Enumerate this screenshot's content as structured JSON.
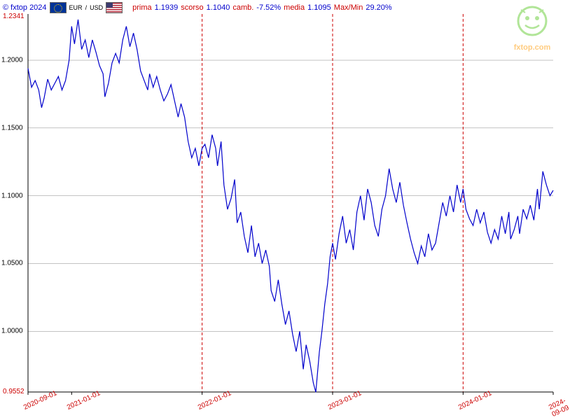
{
  "header": {
    "copyright": "© fxtop 2024",
    "pair_from": "EUR",
    "pair_sep": "/",
    "pair_to": "USD",
    "prima_label": "prima",
    "prima_value": "1.1939",
    "scorso_label": "scorso",
    "scorso_value": "1.1040",
    "camb_label": "camb.",
    "camb_value": "-7.52%",
    "media_label": "media",
    "media_value": "1.1095",
    "maxmin_label": "Max/Min",
    "maxmin_value": "29.20%"
  },
  "watermark": {
    "text": "fxtop.com",
    "face_color": "#66cc33",
    "text_color": "#ff9900"
  },
  "chart": {
    "type": "line",
    "background_color": "#ffffff",
    "line_color": "#0000cc",
    "line_width": 1.2,
    "grid_color": "#888888",
    "grid_width": 0.5,
    "vline_color": "#cc0000",
    "vline_dash": "4,3",
    "axis_color": "#000000",
    "ymin": 0.9552,
    "ymax": 1.2341,
    "ymax_label": "1.2341",
    "ymin_label": "0.9552",
    "ymax_color": "#cc0000",
    "ymin_color": "#cc0000",
    "ytick_label_color": "#000000",
    "yticks": [
      1.0,
      1.05,
      1.1,
      1.15,
      1.2
    ],
    "ytick_labels": [
      "1.0000",
      "1.0500",
      "1.1000",
      "1.1500",
      "1.2000"
    ],
    "ylabel_fontsize": 10,
    "xmin": 0,
    "xmax": 1469,
    "xticks": [
      0,
      122,
      487,
      852,
      1217,
      1469
    ],
    "xtick_labels": [
      "2020-09-01",
      "2021-01-01",
      "2022-01-01",
      "2023-01-01",
      "2024-01-01",
      "2024-09-09"
    ],
    "xtick_label_color": "#cc0000",
    "xlabel_fontsize": 10,
    "vlines_at": [
      487,
      852,
      1217
    ],
    "series": [
      [
        0,
        1.194
      ],
      [
        10,
        1.18
      ],
      [
        20,
        1.185
      ],
      [
        30,
        1.178
      ],
      [
        38,
        1.165
      ],
      [
        45,
        1.172
      ],
      [
        55,
        1.186
      ],
      [
        65,
        1.178
      ],
      [
        75,
        1.183
      ],
      [
        85,
        1.188
      ],
      [
        95,
        1.178
      ],
      [
        105,
        1.185
      ],
      [
        115,
        1.2
      ],
      [
        122,
        1.225
      ],
      [
        130,
        1.212
      ],
      [
        140,
        1.23
      ],
      [
        150,
        1.208
      ],
      [
        160,
        1.215
      ],
      [
        170,
        1.202
      ],
      [
        180,
        1.215
      ],
      [
        190,
        1.206
      ],
      [
        200,
        1.196
      ],
      [
        210,
        1.19
      ],
      [
        215,
        1.173
      ],
      [
        225,
        1.183
      ],
      [
        235,
        1.198
      ],
      [
        245,
        1.205
      ],
      [
        255,
        1.198
      ],
      [
        265,
        1.215
      ],
      [
        275,
        1.225
      ],
      [
        285,
        1.21
      ],
      [
        295,
        1.22
      ],
      [
        305,
        1.208
      ],
      [
        315,
        1.192
      ],
      [
        325,
        1.185
      ],
      [
        335,
        1.178
      ],
      [
        340,
        1.19
      ],
      [
        350,
        1.18
      ],
      [
        360,
        1.188
      ],
      [
        370,
        1.178
      ],
      [
        380,
        1.17
      ],
      [
        390,
        1.175
      ],
      [
        400,
        1.182
      ],
      [
        410,
        1.17
      ],
      [
        420,
        1.158
      ],
      [
        428,
        1.168
      ],
      [
        438,
        1.158
      ],
      [
        448,
        1.14
      ],
      [
        458,
        1.128
      ],
      [
        468,
        1.135
      ],
      [
        478,
        1.122
      ],
      [
        487,
        1.135
      ],
      [
        495,
        1.138
      ],
      [
        505,
        1.128
      ],
      [
        515,
        1.145
      ],
      [
        525,
        1.135
      ],
      [
        530,
        1.122
      ],
      [
        540,
        1.14
      ],
      [
        548,
        1.108
      ],
      [
        558,
        1.09
      ],
      [
        568,
        1.098
      ],
      [
        578,
        1.112
      ],
      [
        585,
        1.08
      ],
      [
        595,
        1.088
      ],
      [
        605,
        1.07
      ],
      [
        615,
        1.058
      ],
      [
        625,
        1.078
      ],
      [
        635,
        1.055
      ],
      [
        645,
        1.065
      ],
      [
        655,
        1.05
      ],
      [
        665,
        1.06
      ],
      [
        675,
        1.048
      ],
      [
        680,
        1.03
      ],
      [
        690,
        1.022
      ],
      [
        700,
        1.038
      ],
      [
        710,
        1.02
      ],
      [
        720,
        1.005
      ],
      [
        730,
        1.015
      ],
      [
        740,
        0.998
      ],
      [
        750,
        0.985
      ],
      [
        760,
        1.0
      ],
      [
        770,
        0.972
      ],
      [
        778,
        0.99
      ],
      [
        788,
        0.978
      ],
      [
        798,
        0.962
      ],
      [
        805,
        0.955
      ],
      [
        815,
        0.985
      ],
      [
        822,
        1.0
      ],
      [
        830,
        1.02
      ],
      [
        838,
        1.035
      ],
      [
        845,
        1.055
      ],
      [
        852,
        1.065
      ],
      [
        860,
        1.053
      ],
      [
        870,
        1.072
      ],
      [
        880,
        1.085
      ],
      [
        890,
        1.065
      ],
      [
        900,
        1.075
      ],
      [
        910,
        1.06
      ],
      [
        920,
        1.088
      ],
      [
        930,
        1.1
      ],
      [
        940,
        1.082
      ],
      [
        950,
        1.105
      ],
      [
        960,
        1.095
      ],
      [
        970,
        1.078
      ],
      [
        980,
        1.07
      ],
      [
        990,
        1.09
      ],
      [
        1000,
        1.1
      ],
      [
        1010,
        1.12
      ],
      [
        1020,
        1.105
      ],
      [
        1030,
        1.095
      ],
      [
        1040,
        1.11
      ],
      [
        1050,
        1.093
      ],
      [
        1060,
        1.08
      ],
      [
        1070,
        1.068
      ],
      [
        1080,
        1.058
      ],
      [
        1090,
        1.05
      ],
      [
        1100,
        1.063
      ],
      [
        1110,
        1.055
      ],
      [
        1120,
        1.072
      ],
      [
        1130,
        1.06
      ],
      [
        1140,
        1.065
      ],
      [
        1150,
        1.08
      ],
      [
        1160,
        1.095
      ],
      [
        1170,
        1.085
      ],
      [
        1180,
        1.1
      ],
      [
        1190,
        1.088
      ],
      [
        1200,
        1.108
      ],
      [
        1210,
        1.095
      ],
      [
        1217,
        1.105
      ],
      [
        1225,
        1.09
      ],
      [
        1235,
        1.083
      ],
      [
        1245,
        1.078
      ],
      [
        1255,
        1.09
      ],
      [
        1265,
        1.08
      ],
      [
        1275,
        1.088
      ],
      [
        1285,
        1.073
      ],
      [
        1295,
        1.065
      ],
      [
        1305,
        1.075
      ],
      [
        1315,
        1.068
      ],
      [
        1325,
        1.085
      ],
      [
        1335,
        1.072
      ],
      [
        1345,
        1.088
      ],
      [
        1350,
        1.068
      ],
      [
        1360,
        1.075
      ],
      [
        1370,
        1.085
      ],
      [
        1375,
        1.072
      ],
      [
        1385,
        1.09
      ],
      [
        1395,
        1.083
      ],
      [
        1405,
        1.093
      ],
      [
        1415,
        1.082
      ],
      [
        1425,
        1.105
      ],
      [
        1430,
        1.09
      ],
      [
        1440,
        1.118
      ],
      [
        1450,
        1.108
      ],
      [
        1460,
        1.1
      ],
      [
        1469,
        1.104
      ]
    ]
  }
}
